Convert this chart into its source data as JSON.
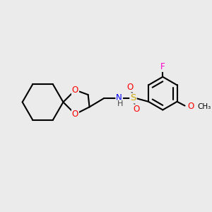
{
  "background_color": "#ebebeb",
  "bond_width": 1.5,
  "atom_colors": {
    "O": "#ff0000",
    "N": "#0000ff",
    "S": "#ccaa00",
    "F": "#ff00cc",
    "C": "#000000",
    "H": "#444444"
  },
  "font_size": 8.5,
  "figsize": [
    3.0,
    3.0
  ],
  "dpi": 100
}
